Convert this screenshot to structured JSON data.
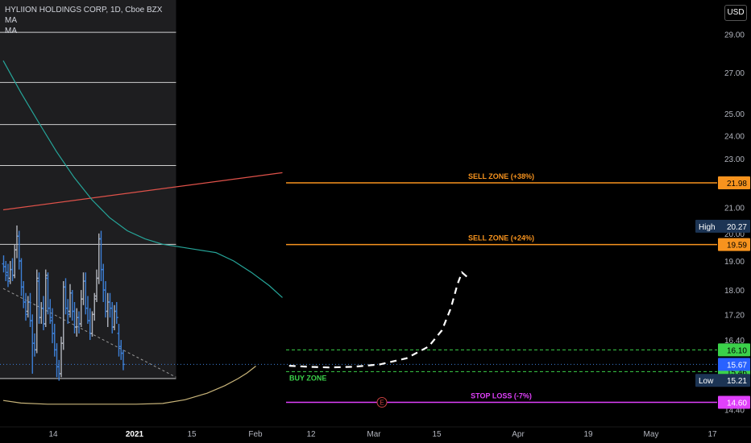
{
  "header": {
    "symbol_title": "HYLIION HOLDINGS CORP, 1D, Cboe BZX",
    "indicators": [
      "MA",
      "MA"
    ],
    "currency": "USD"
  },
  "colors": {
    "background": "#000000",
    "bar_up": "#b2b5be",
    "bar_down": "#3d7fd6",
    "ma_fast": "#26a69a",
    "ma_slow": "#e0524a",
    "envelope": "#c9b57a",
    "sell_zone": "#f7931e",
    "buy_zone": "#3bd14a",
    "stop_loss": "#e040fb",
    "projection": "#ffffff"
  },
  "chart_data": {
    "type": "candlestick-ohlc",
    "y_scale": "log",
    "ylim": [
      14.2,
      29.9
    ],
    "price_ticks": [
      "29.00",
      "27.00",
      "25.00",
      "24.00",
      "23.00",
      "21.00",
      "20.00",
      "19.00",
      "18.00",
      "17.20",
      "16.40",
      "14.40"
    ],
    "time_ticks": [
      {
        "label": "14",
        "bold": false
      },
      {
        "label": "2021",
        "bold": true
      },
      {
        "label": "15",
        "bold": false
      },
      {
        "label": "Feb",
        "bold": false
      },
      {
        "label": "12",
        "bold": false
      },
      {
        "label": "Mar",
        "bold": false
      },
      {
        "label": "15",
        "bold": false
      },
      {
        "label": "Apr",
        "bold": false
      },
      {
        "label": "19",
        "bold": false
      },
      {
        "label": "May",
        "bold": false
      },
      {
        "label": "17",
        "bold": false
      }
    ],
    "ohlc": [
      [
        18.9,
        19.2,
        18.6,
        18.8
      ],
      [
        18.8,
        19.0,
        18.3,
        18.5
      ],
      [
        18.6,
        18.9,
        18.1,
        18.3
      ],
      [
        18.4,
        19.0,
        18.2,
        18.7
      ],
      [
        18.7,
        19.1,
        18.3,
        18.5
      ],
      [
        18.5,
        19.6,
        18.4,
        19.4
      ],
      [
        19.4,
        20.3,
        19.1,
        19.9
      ],
      [
        19.9,
        20.1,
        18.7,
        19.0
      ],
      [
        19.0,
        19.1,
        17.8,
        18.1
      ],
      [
        18.1,
        18.3,
        17.4,
        17.6
      ],
      [
        17.6,
        17.9,
        17.0,
        17.2
      ],
      [
        17.3,
        17.8,
        17.1,
        17.6
      ],
      [
        17.6,
        17.9,
        16.8,
        17.0
      ],
      [
        17.0,
        17.2,
        15.4,
        16.3
      ],
      [
        16.3,
        16.6,
        15.9,
        16.1
      ],
      [
        16.1,
        18.7,
        16.0,
        18.4
      ],
      [
        18.3,
        18.6,
        16.9,
        17.1
      ],
      [
        17.1,
        17.6,
        16.9,
        17.4
      ],
      [
        17.4,
        17.8,
        16.7,
        16.9
      ],
      [
        16.9,
        18.7,
        16.8,
        18.5
      ],
      [
        18.4,
        18.6,
        17.2,
        17.4
      ],
      [
        17.4,
        17.7,
        16.9,
        17.1
      ],
      [
        17.0,
        17.4,
        16.3,
        16.6
      ],
      [
        16.6,
        16.9,
        15.9,
        16.1
      ],
      [
        16.1,
        16.3,
        15.3,
        15.6
      ],
      [
        15.6,
        15.8,
        15.2,
        15.4
      ],
      [
        15.4,
        16.5,
        15.3,
        16.3
      ],
      [
        16.3,
        18.3,
        16.1,
        18.1
      ],
      [
        18.1,
        18.4,
        17.2,
        17.4
      ],
      [
        17.4,
        17.7,
        16.9,
        17.2
      ],
      [
        17.3,
        18.2,
        17.1,
        17.9
      ],
      [
        17.9,
        18.0,
        17.0,
        17.3
      ],
      [
        17.3,
        17.6,
        16.6,
        16.8
      ],
      [
        16.8,
        17.4,
        16.5,
        17.1
      ],
      [
        17.1,
        17.3,
        16.6,
        16.9
      ],
      [
        16.9,
        18.0,
        16.8,
        17.7
      ],
      [
        17.7,
        18.6,
        17.5,
        18.3
      ],
      [
        18.3,
        18.6,
        17.2,
        17.4
      ],
      [
        17.4,
        17.8,
        16.9,
        17.0
      ],
      [
        17.0,
        17.4,
        16.4,
        16.6
      ],
      [
        16.6,
        17.3,
        16.5,
        17.2
      ],
      [
        17.2,
        17.9,
        17.0,
        17.7
      ],
      [
        17.8,
        18.7,
        17.6,
        18.4
      ],
      [
        18.4,
        20.0,
        18.2,
        19.8
      ],
      [
        19.8,
        20.1,
        18.3,
        18.7
      ],
      [
        18.7,
        18.9,
        17.6,
        18.0
      ],
      [
        18.0,
        18.3,
        17.1,
        17.3
      ],
      [
        17.3,
        17.9,
        16.8,
        17.6
      ],
      [
        17.6,
        17.9,
        17.1,
        17.4
      ],
      [
        17.4,
        17.6,
        16.6,
        16.8
      ],
      [
        16.8,
        17.5,
        16.7,
        17.3
      ],
      [
        17.3,
        17.6,
        16.9,
        17.1
      ],
      [
        16.6,
        16.9,
        15.9,
        16.2
      ],
      [
        16.2,
        16.4,
        15.8,
        16.0
      ],
      [
        16.0,
        16.1,
        15.5,
        15.67
      ]
    ],
    "ma_fast_points": [
      [
        0,
        27.6
      ],
      [
        8,
        26.0
      ],
      [
        16,
        24.6
      ],
      [
        24,
        23.3
      ],
      [
        32,
        22.2
      ],
      [
        40,
        21.3
      ],
      [
        48,
        20.6
      ],
      [
        56,
        20.1
      ],
      [
        64,
        19.8
      ],
      [
        72,
        19.6
      ],
      [
        80,
        19.5
      ],
      [
        88,
        19.4
      ],
      [
        96,
        19.3
      ],
      [
        104,
        19.0
      ],
      [
        112,
        18.6
      ],
      [
        120,
        18.15
      ],
      [
        126,
        17.75
      ]
    ],
    "ma_slow_points": [
      [
        0,
        20.9
      ],
      [
        126,
        22.4
      ]
    ],
    "envelope_points": [
      [
        0,
        14.65
      ],
      [
        8,
        14.58
      ],
      [
        20,
        14.55
      ],
      [
        40,
        14.55
      ],
      [
        60,
        14.55
      ],
      [
        72,
        14.57
      ],
      [
        82,
        14.67
      ],
      [
        92,
        14.85
      ],
      [
        100,
        15.06
      ],
      [
        106,
        15.26
      ],
      [
        110,
        15.42
      ],
      [
        114,
        15.62
      ]
    ],
    "trendline_points": [
      [
        0,
        18.05
      ],
      [
        78,
        15.3
      ]
    ],
    "projection_points": [
      [
        129,
        15.63
      ],
      [
        138,
        15.6
      ],
      [
        147,
        15.58
      ],
      [
        158,
        15.6
      ],
      [
        170,
        15.67
      ],
      [
        182,
        15.85
      ],
      [
        192,
        16.2
      ],
      [
        198,
        16.7
      ],
      [
        202,
        17.4
      ],
      [
        205,
        18.2
      ],
      [
        207,
        18.6
      ],
      [
        210,
        18.4
      ]
    ],
    "history_shaded_until_index": 78,
    "history_hlines": [
      29.1,
      26.5,
      24.5,
      22.7,
      19.6
    ],
    "levels": [
      {
        "label": "SELL ZONE (+38%)",
        "price": 21.98,
        "price_label": "21.98",
        "kind": "sell"
      },
      {
        "label": "SELL ZONE (+24%)",
        "price": 19.59,
        "price_label": "19.59",
        "kind": "sell"
      },
      {
        "label": "",
        "price": 16.1,
        "price_label": "16.10",
        "kind": "buy"
      },
      {
        "label": "BUY ZONE",
        "price": 15.46,
        "price_label": "15.46",
        "kind": "buy"
      },
      {
        "label": "STOP LOSS (-7%)",
        "price": 14.6,
        "price_label": "14.60",
        "kind": "stop"
      }
    ],
    "current_price": {
      "value": 15.67,
      "label": "15.67"
    },
    "high": {
      "label": "High",
      "value": 20.27,
      "value_label": "20.27"
    },
    "low": {
      "label": "Low",
      "value": 15.21,
      "value_label": "15.21"
    },
    "earnings_marker": {
      "label": "E",
      "time": 172
    }
  }
}
